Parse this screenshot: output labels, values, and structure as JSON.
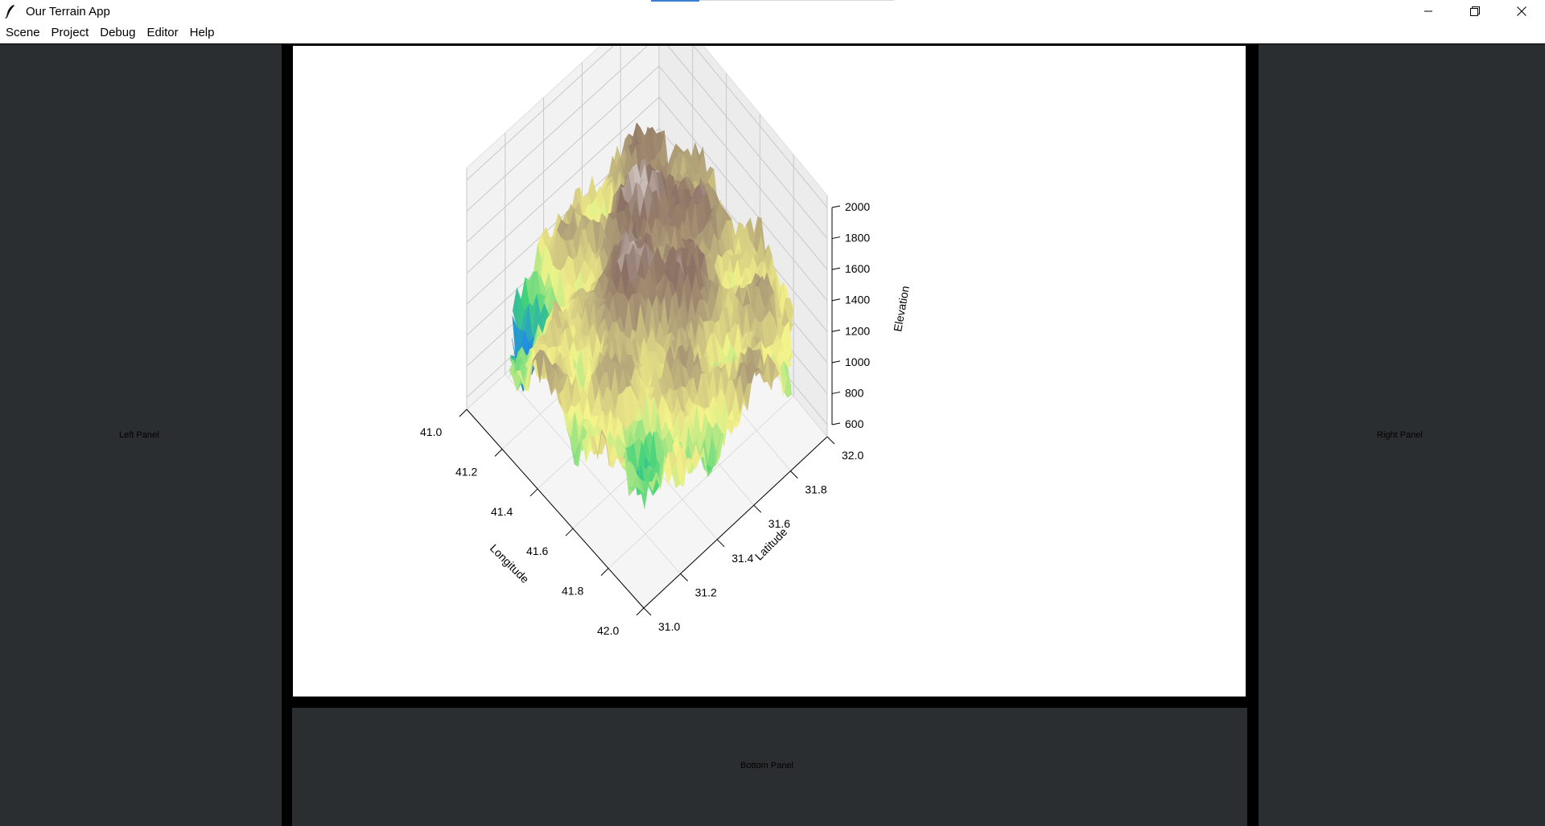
{
  "window": {
    "title": "Our Terrain App"
  },
  "menu": {
    "items": [
      "Scene",
      "Project",
      "Debug",
      "Editor",
      "Help"
    ]
  },
  "panels": {
    "left": "Left Panel",
    "right": "Right Panel",
    "bottom": "Bottom Panel"
  },
  "chart_data": {
    "type": "surface3d",
    "title": "",
    "xlabel": "Longitude",
    "ylabel": "Latitude",
    "zlabel": "Elevation",
    "x_ticks": [
      "41.0",
      "41.2",
      "41.4",
      "41.6",
      "41.8",
      "42.0"
    ],
    "y_ticks": [
      "31.0",
      "31.2",
      "31.4",
      "31.6",
      "31.8",
      "32.0"
    ],
    "z_ticks": [
      "600",
      "800",
      "1000",
      "1200",
      "1400",
      "1600",
      "1800",
      "2000"
    ],
    "xlim": [
      41.0,
      42.0
    ],
    "ylim": [
      31.0,
      32.0
    ],
    "zlim": [
      600,
      2000
    ],
    "colormap": [
      "#3b2d9c",
      "#1f8fe0",
      "#40d27a",
      "#f5f48a",
      "#b5a57a",
      "#8a7064",
      "#fdfbfb"
    ],
    "grid": true
  }
}
